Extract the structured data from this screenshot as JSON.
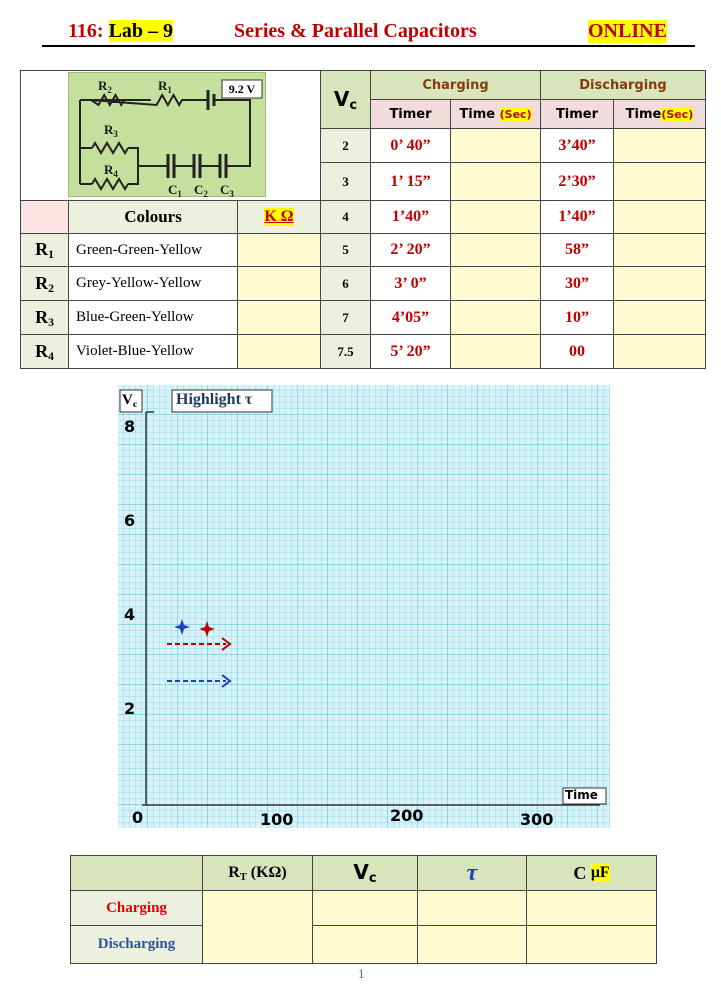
{
  "header": {
    "course": "116:",
    "lab": "Lab – 9",
    "title": "Series & Parallel Capacitors",
    "mode": "ONLINE"
  },
  "circuit": {
    "battery": "9.2 V",
    "labels": [
      {
        "base": "R",
        "sub": "2"
      },
      {
        "base": "R",
        "sub": "1"
      },
      {
        "base": "R",
        "sub": "3"
      },
      {
        "base": "R",
        "sub": "4"
      },
      {
        "base": "C",
        "sub": "1"
      },
      {
        "base": "C",
        "sub": "2"
      },
      {
        "base": "C",
        "sub": "3"
      }
    ]
  },
  "timing_table": {
    "vc_header": {
      "base": "V",
      "sub": "c"
    },
    "charging": "Charging",
    "discharging": "Discharging",
    "columns": [
      {
        "text": "Timer"
      },
      {
        "text": "Time ",
        "unit": "(Sec)"
      },
      {
        "text": "Timer"
      },
      {
        "text": "Time",
        "unit": "(Sec)"
      }
    ],
    "rows": [
      {
        "vc": 2,
        "charging_timer": "0’ 40”",
        "discharging_timer": "3’40”"
      },
      {
        "vc": 3,
        "charging_timer": "1’ 15”",
        "discharging_timer": "2’30”"
      },
      {
        "vc": 4,
        "charging_timer": "1’40”",
        "discharging_timer": "1’40”"
      },
      {
        "vc": 5,
        "charging_timer": "2’ 20”",
        "discharging_timer": "58”"
      },
      {
        "vc": 6,
        "charging_timer": "3’ 0”",
        "discharging_timer": "30”"
      },
      {
        "vc": 7,
        "charging_timer": "4’05”",
        "discharging_timer": "10”"
      },
      {
        "vc": 7.5,
        "charging_timer": "5’ 20”",
        "discharging_timer": "00"
      }
    ]
  },
  "resistor_table": {
    "colours": "Colours",
    "unit": "K Ω",
    "rows": [
      {
        "label": {
          "base": "R",
          "sub": "1"
        },
        "colours": "Green-Green-Yellow"
      },
      {
        "label": {
          "base": "R",
          "sub": "2"
        },
        "colours": "Grey-Yellow-Yellow"
      },
      {
        "label": {
          "base": "R",
          "sub": "3"
        },
        "colours": "Blue-Green-Yellow"
      },
      {
        "label": {
          "base": "R",
          "sub": "4"
        },
        "colours": "Violet-Blue-Yellow"
      }
    ]
  },
  "graph": {
    "y_label": {
      "base": "V",
      "sub": "c"
    },
    "highlight": "Highlight τ",
    "time": "Time",
    "y_labels": [
      8,
      6,
      4,
      2
    ],
    "origin": 0,
    "x_labels": [
      100,
      200,
      300
    ]
  },
  "results_table": {
    "rt": {
      "base": "R",
      "sub": "T",
      "rest": " (KΩ)"
    },
    "vc": {
      "base": "V",
      "sub": "c"
    },
    "tau": "τ",
    "c": {
      "text": "C ",
      "unit": "μF"
    },
    "rows": [
      "Charging",
      "Discharging"
    ]
  },
  "page_number": 1
}
